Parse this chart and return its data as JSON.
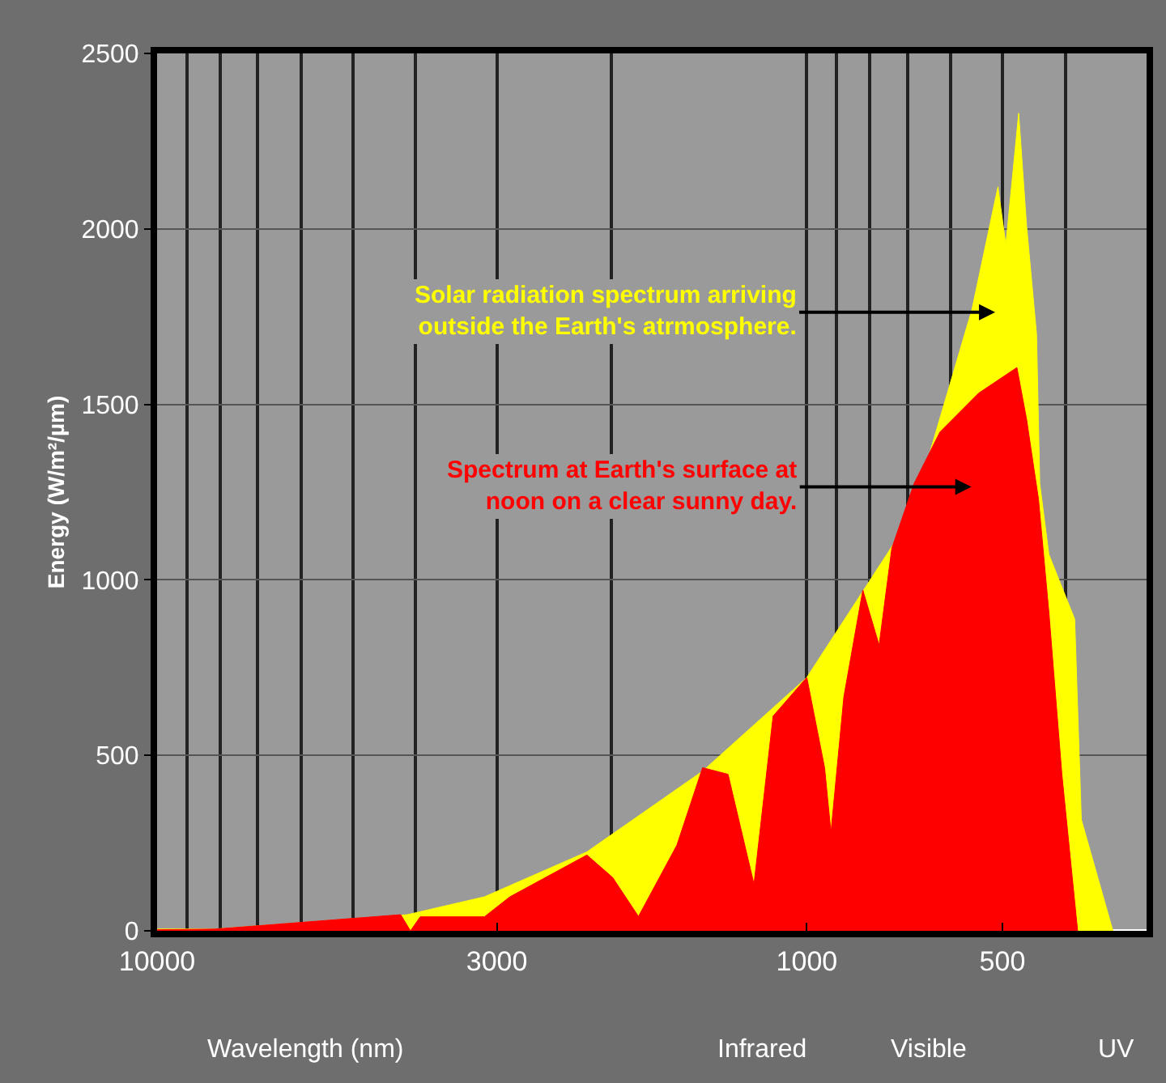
{
  "chart_data": {
    "type": "area",
    "xlabel": "Wavelength (nm)",
    "ylabel": "Energy (W/m²/µm)",
    "series": [
      {
        "name": null,
        "color": "#ffff00",
        "x": [
          10000,
          8150,
          4120,
          3135,
          2180,
          1447,
          1000,
          732,
          668,
          557,
          508,
          494,
          472,
          459,
          443,
          438,
          424,
          387,
          378,
          338
        ],
        "values": [
          5,
          5,
          46,
          97,
          225,
          455,
          722,
          1108,
          1274,
          1771,
          2120,
          1955,
          2330,
          2010,
          1700,
          1274,
          1072,
          888,
          317,
          0
        ]
      },
      {
        "name": null,
        "color": "#ff0000",
        "x": [
          10000,
          8150,
          4217,
          4074,
          3936,
          3135,
          2864,
          2180,
          1990,
          1816,
          1585,
          1447,
          1322,
          1206,
          1127,
          1000,
          939,
          918,
          877,
          820,
          774,
          740,
          684,
          624,
          544,
          475,
          459,
          440,
          424,
          405,
          383
        ],
        "values": [
          3,
          5,
          46,
          0,
          40,
          40,
          97,
          216,
          152,
          41,
          244,
          465,
          446,
          133,
          612,
          722,
          465,
          281,
          667,
          971,
          814,
          1090,
          1274,
          1421,
          1532,
          1605,
          1458,
          1230,
          906,
          446,
          0
        ]
      }
    ],
    "annotations": [
      "Solar radiation spectrum arriving\noutside the Earth's atrmosphere.",
      "Spectrum at Earth's surface at\nnoon on a clear sunny day.",
      "Infrared",
      "Visible",
      "UV"
    ],
    "xlim": [
      10000,
      300
    ],
    "xticks": [
      10000,
      3000,
      1000,
      500
    ],
    "ylim": [
      0,
      2500
    ],
    "yticks": [
      0,
      500,
      1000,
      1500,
      2000,
      2500
    ],
    "log": "x",
    "grid": true
  }
}
